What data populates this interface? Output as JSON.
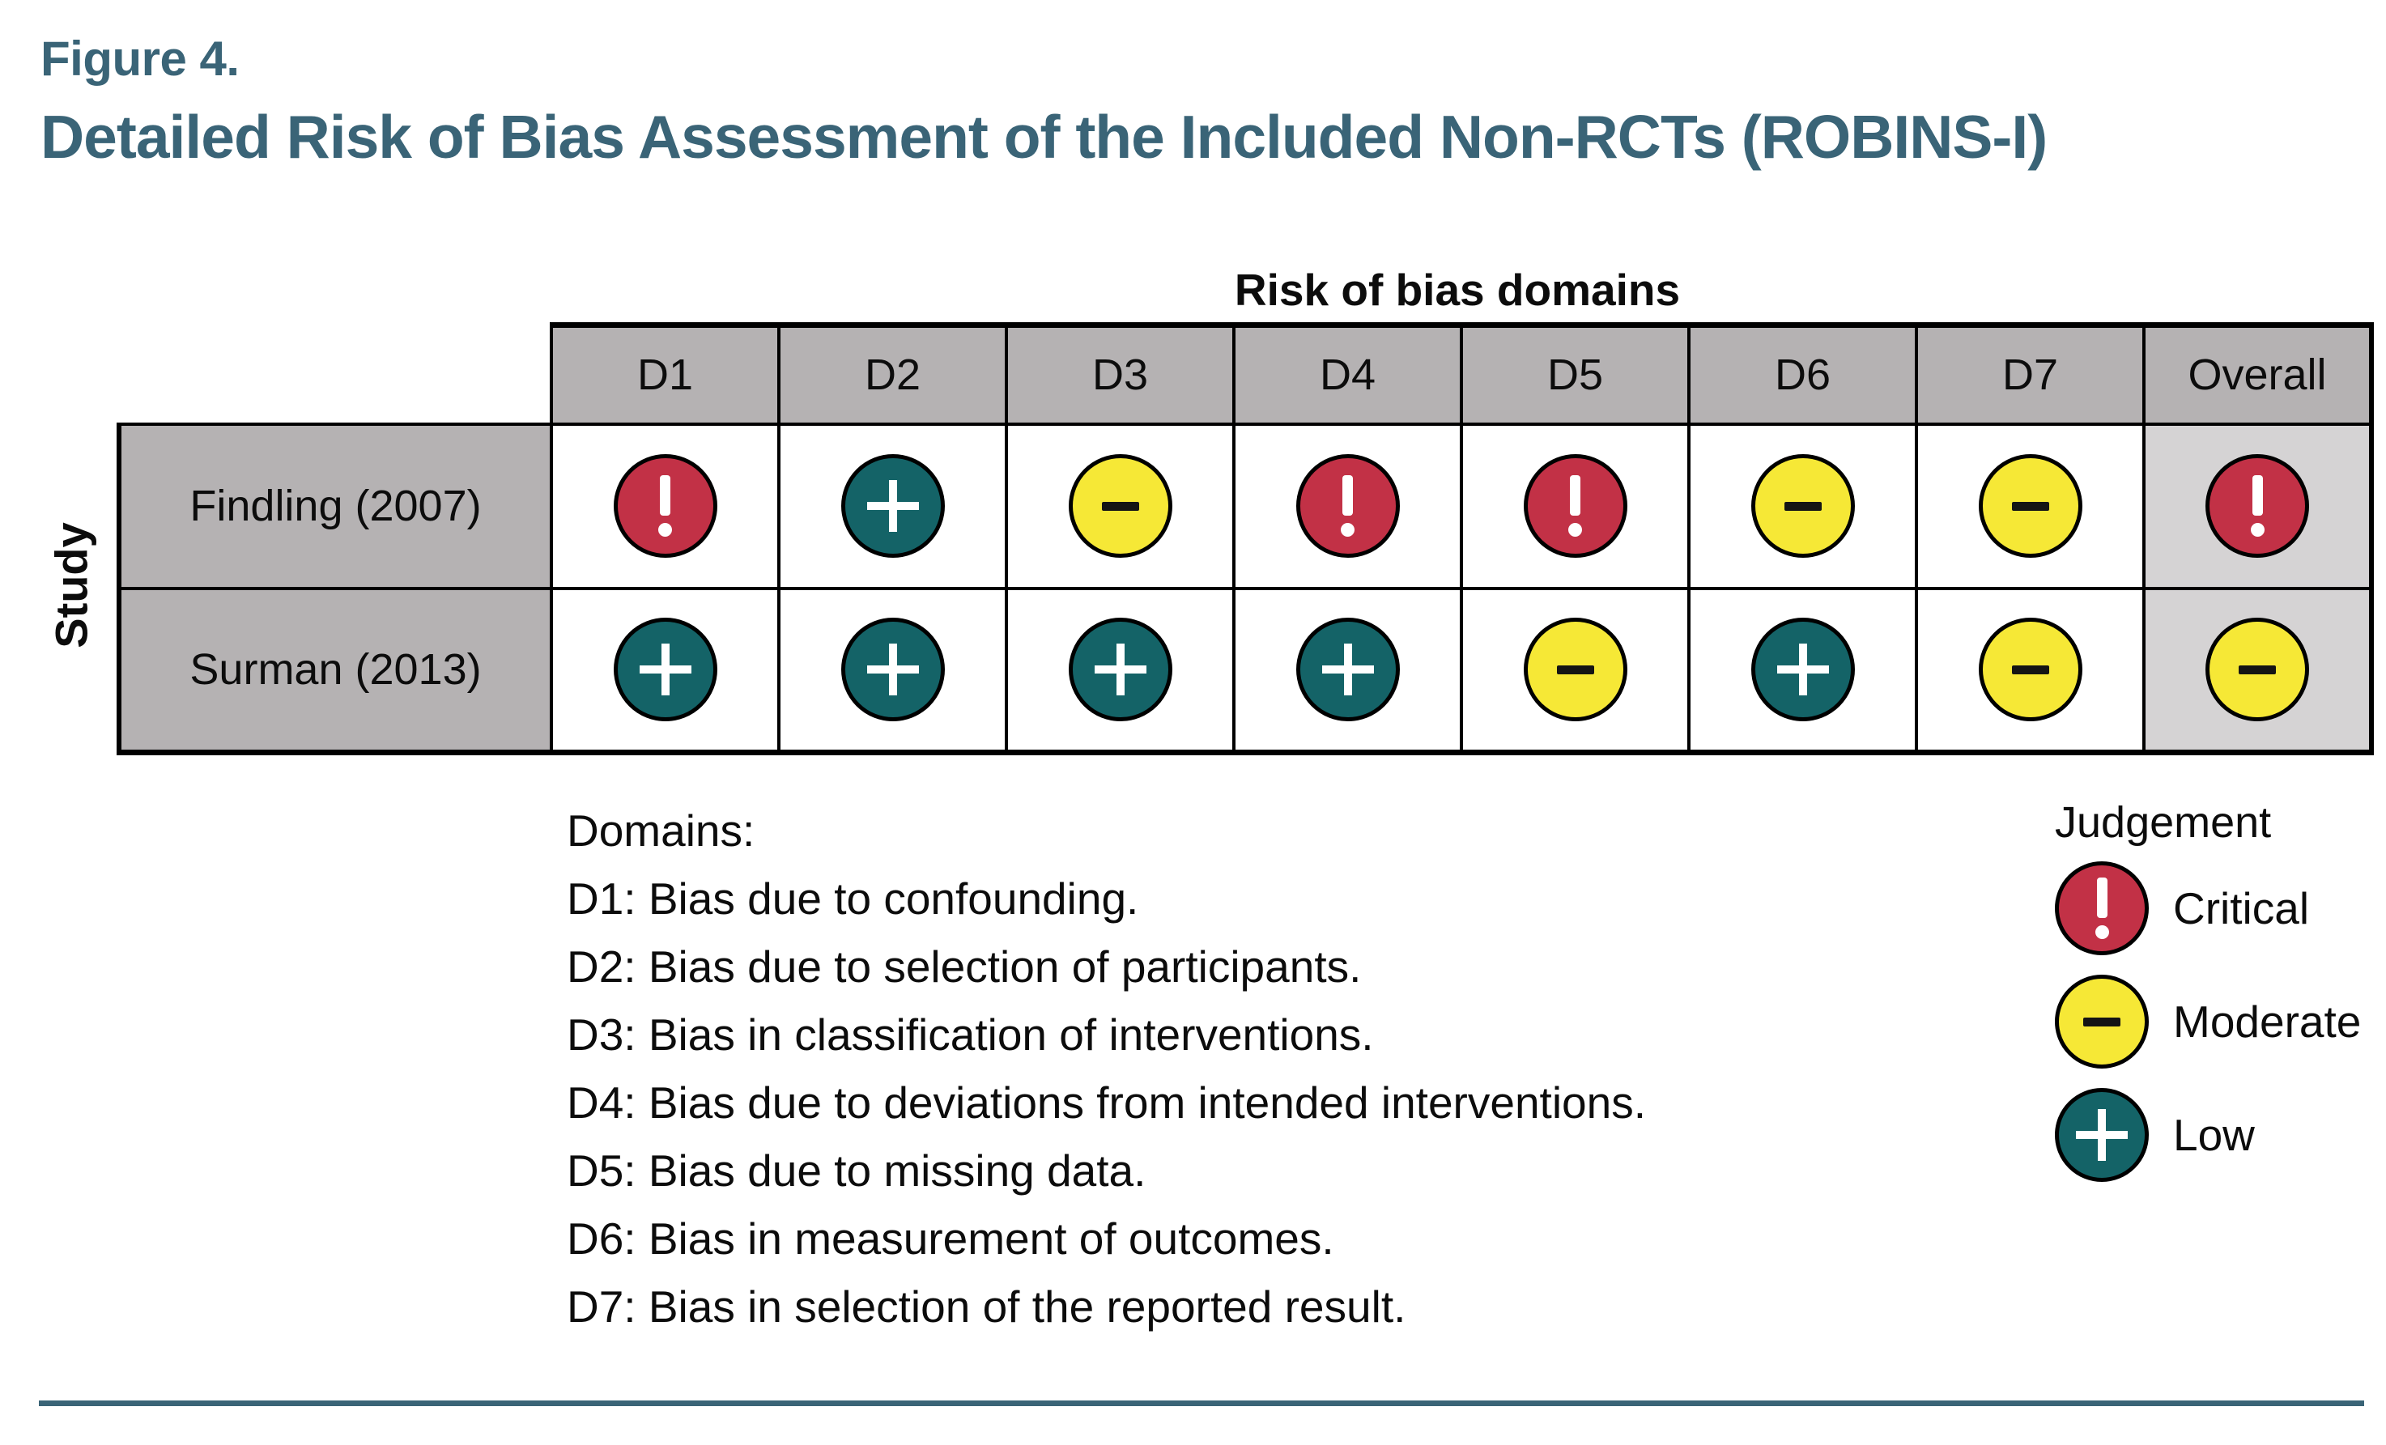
{
  "figure": {
    "label": "Figure 4.",
    "title": "Detailed Risk of Bias Assessment of the Included Non-RCTs (ROBINS-I)"
  },
  "table": {
    "axis_title": "Risk of bias domains",
    "row_axis_label": "Study"
  },
  "chart_data": {
    "type": "table",
    "title": "Detailed Risk of Bias Assessment of the Included Non-RCTs (ROBINS-I)",
    "x_categories": [
      "D1",
      "D2",
      "D3",
      "D4",
      "D5",
      "D6",
      "D7",
      "Overall"
    ],
    "y_categories": [
      "Findling (2007)",
      "Surman (2013)"
    ],
    "values": [
      [
        "Critical",
        "Low",
        "Moderate",
        "Critical",
        "Critical",
        "Moderate",
        "Moderate",
        "Critical"
      ],
      [
        "Low",
        "Low",
        "Low",
        "Low",
        "Moderate",
        "Low",
        "Moderate",
        "Moderate"
      ]
    ],
    "legend_position": "right",
    "grid": "black cell borders, gray header and study columns"
  },
  "domains_note": {
    "heading": "Domains:",
    "items": [
      "D1: Bias due to confounding.",
      "D2: Bias due to selection of participants.",
      "D3: Bias in classification of interventions.",
      "D4: Bias due to deviations from intended interventions.",
      "D5: Bias due to missing data.",
      "D6: Bias in measurement of outcomes.",
      "D7: Bias in selection of the reported result."
    ]
  },
  "legend": {
    "title": "Judgement",
    "items": [
      {
        "key": "critical",
        "symbol": "!",
        "label": "Critical"
      },
      {
        "key": "moderate",
        "symbol": "−",
        "label": "Moderate"
      },
      {
        "key": "low",
        "symbol": "+",
        "label": "Low"
      }
    ]
  },
  "colors": {
    "accent_teal": "#3A6477",
    "critical_red": "#C23146",
    "moderate_yellow": "#F6E836",
    "low_teal": "#146367",
    "header_gray": "#B5B2B3",
    "overall_gray": "#D5D3D4"
  }
}
